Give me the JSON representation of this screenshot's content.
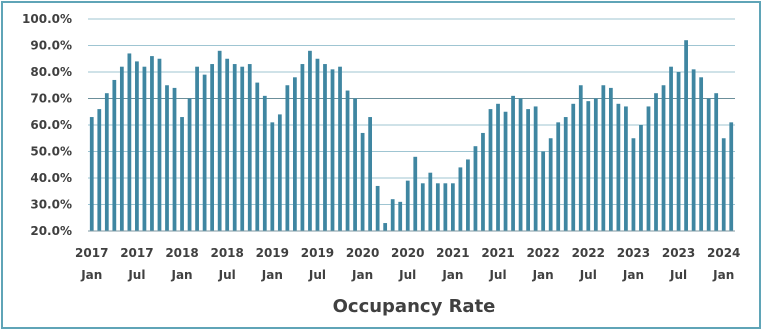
{
  "chart_data": {
    "type": "bar",
    "title": "Occupancy Rate",
    "xlabel": "",
    "ylabel": "",
    "ylim": [
      20,
      100
    ],
    "y_ticks": [
      "100.0%",
      "90.0%",
      "80.0%",
      "70.0%",
      "60.0%",
      "50.0%",
      "40.0%",
      "30.0%",
      "20.0%"
    ],
    "y_tick_values": [
      100,
      90,
      80,
      70,
      60,
      50,
      40,
      30,
      20
    ],
    "x_tick_labels": [
      {
        "year": "2017",
        "month": "Jan",
        "index": 0
      },
      {
        "year": "2017",
        "month": "Jul",
        "index": 6
      },
      {
        "year": "2018",
        "month": "Jan",
        "index": 12
      },
      {
        "year": "2018",
        "month": "Jul",
        "index": 18
      },
      {
        "year": "2019",
        "month": "Jan",
        "index": 24
      },
      {
        "year": "2019",
        "month": "Jul",
        "index": 30
      },
      {
        "year": "2020",
        "month": "Jan",
        "index": 36
      },
      {
        "year": "2020",
        "month": "Jul",
        "index": 42
      },
      {
        "year": "2021",
        "month": "Jan",
        "index": 48
      },
      {
        "year": "2021",
        "month": "Jul",
        "index": 54
      },
      {
        "year": "2022",
        "month": "Jan",
        "index": 60
      },
      {
        "year": "2022",
        "month": "Jul",
        "index": 66
      },
      {
        "year": "2023",
        "month": "Jan",
        "index": 72
      },
      {
        "year": "2023",
        "month": "Jul",
        "index": 78
      },
      {
        "year": "2024",
        "month": "Jan",
        "index": 84
      }
    ],
    "grid": true,
    "bar_color": "#3f86a1",
    "grid_color": "#9fc5d2",
    "values": [
      63,
      66,
      72,
      77,
      82,
      87,
      84,
      82,
      86,
      85,
      75,
      74,
      63,
      70,
      82,
      79,
      83,
      88,
      85,
      83,
      82,
      83,
      76,
      71,
      61,
      64,
      75,
      78,
      83,
      88,
      85,
      83,
      81,
      82,
      73,
      70,
      57,
      63,
      37,
      23,
      32,
      31,
      39,
      48,
      38,
      42,
      38,
      38,
      38,
      44,
      47,
      52,
      57,
      66,
      68,
      65,
      71,
      70,
      66,
      67,
      50,
      55,
      61,
      63,
      68,
      75,
      69,
      70,
      75,
      74,
      68,
      67,
      55,
      60,
      67,
      72,
      75,
      82,
      80,
      92,
      81,
      78,
      70,
      72,
      55,
      61
    ]
  }
}
